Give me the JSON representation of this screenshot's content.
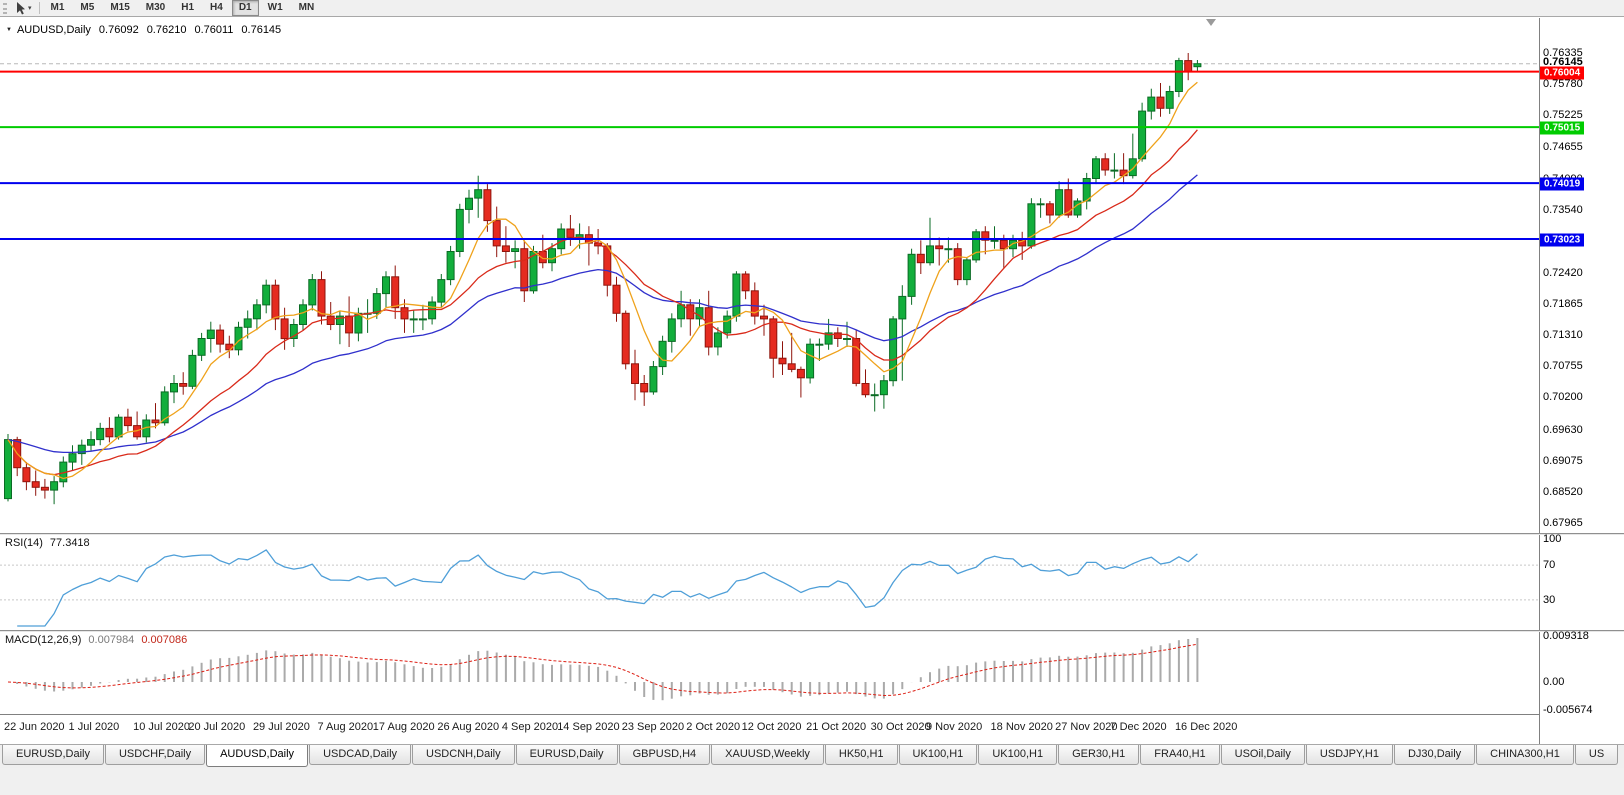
{
  "toolbar": {
    "timeframes": [
      "M1",
      "M5",
      "M15",
      "M30",
      "H1",
      "H4",
      "D1",
      "W1",
      "MN"
    ],
    "active_timeframe": "D1"
  },
  "chart": {
    "title": "AUDUSD,Daily",
    "open": "0.76092",
    "high": "0.76210",
    "low": "0.76011",
    "close": "0.76145"
  },
  "indicators": {
    "rsi": {
      "label": "RSI(14)",
      "value": "77.3418",
      "axis_labels": [
        "100",
        "70",
        "30"
      ]
    },
    "macd": {
      "label": "MACD(12,26,9)",
      "value_main": "0.007984",
      "value_signal": "0.007086",
      "axis_labels": [
        "0.009318",
        "0.00",
        "-0.005674"
      ]
    }
  },
  "tabs": {
    "active_index": 2,
    "items": [
      "EURUSD,Daily",
      "USDCHF,Daily",
      "AUDUSD,Daily",
      "USDCAD,Daily",
      "USDCNH,Daily",
      "EURUSD,Daily",
      "GBPUSD,H4",
      "XAUUSD,Weekly",
      "HK50,H1",
      "UK100,H1",
      "UK100,H1",
      "GER30,H1",
      "FRA40,H1",
      "USOil,Daily",
      "USDJPY,H1",
      "DJ30,Daily",
      "CHINA300,H1",
      "US"
    ]
  },
  "chart_data": {
    "type": "candlestick",
    "symbol": "AUDUSD",
    "period": "Daily",
    "current_price": 0.76145,
    "y_axis": {
      "top_value": 0.76335,
      "bottom_value": 0.67965,
      "labels": [
        "0.76335",
        "0.75780",
        "0.75225",
        "0.74655",
        "0.74090",
        "0.73540",
        "0.72970",
        "0.72420",
        "0.71865",
        "0.71310",
        "0.70755",
        "0.70200",
        "0.69630",
        "0.69075",
        "0.68520",
        "0.67965"
      ]
    },
    "colors": {
      "bull_fill": "#12ae3c",
      "bull_stroke": "#0a6b24",
      "bear_fill": "#e52b20",
      "bear_stroke": "#8f140c",
      "ma_fast": "#efa21b",
      "ma_mid": "#d92a1a",
      "ma_slow": "#3030cc",
      "rsi": "#4f9fd8",
      "rsi_level": "#c8c8c8",
      "macd_hist": "#aaaaaa",
      "macd_signal": "#dd2015",
      "bid_line": "#b8b8b8"
    },
    "hlines": [
      {
        "value": 0.76004,
        "label": "0.76004",
        "color": "#ff0000"
      },
      {
        "value": 0.75015,
        "label": "0.75015",
        "color": "#00cc00"
      },
      {
        "value": 0.74019,
        "label": "0.74019",
        "color": "#0000ee"
      },
      {
        "value": 0.73023,
        "label": "0.73023",
        "color": "#0000ee"
      }
    ],
    "moving_averages": [
      {
        "type": "ema",
        "period": 30,
        "color_key": "ma_slow"
      },
      {
        "type": "sma",
        "period": 14,
        "color_key": "ma_mid"
      },
      {
        "type": "sma",
        "period": 6,
        "color_key": "ma_fast"
      }
    ],
    "rsi": {
      "period": 14,
      "levels": [
        70,
        30
      ],
      "scale": [
        0,
        100
      ]
    },
    "macd": {
      "fast": 12,
      "slow": 26,
      "signal": 9,
      "y_max": 0.009318,
      "y_min": -0.005674
    },
    "x_ticks": [
      [
        0,
        "22 Jun 2020"
      ],
      [
        7,
        "1 Jul 2020"
      ],
      [
        14,
        "10 Jul 2020"
      ],
      [
        20,
        "20 Jul 2020"
      ],
      [
        27,
        "29 Jul 2020"
      ],
      [
        34,
        "7 Aug 2020"
      ],
      [
        40,
        "17 Aug 2020"
      ],
      [
        47,
        "26 Aug 2020"
      ],
      [
        54,
        "4 Sep 2020"
      ],
      [
        60,
        "14 Sep 2020"
      ],
      [
        67,
        "23 Sep 2020"
      ],
      [
        74,
        "2 Oct 2020"
      ],
      [
        80,
        "12 Oct 2020"
      ],
      [
        87,
        "21 Oct 2020"
      ],
      [
        94,
        "30 Oct 2020"
      ],
      [
        100,
        "9 Nov 2020"
      ],
      [
        107,
        "18 Nov 2020"
      ],
      [
        114,
        "27 Nov 2020"
      ],
      [
        120,
        "7 Dec 2020"
      ],
      [
        127,
        "16 Dec 2020"
      ]
    ],
    "candles": [
      [
        0.684,
        0.6955,
        0.6835,
        0.6945
      ],
      [
        0.6945,
        0.695,
        0.688,
        0.6895
      ],
      [
        0.6895,
        0.6905,
        0.6855,
        0.687
      ],
      [
        0.687,
        0.689,
        0.6845,
        0.686
      ],
      [
        0.686,
        0.6875,
        0.684,
        0.6855
      ],
      [
        0.6855,
        0.688,
        0.683,
        0.687
      ],
      [
        0.687,
        0.6915,
        0.686,
        0.6905
      ],
      [
        0.6905,
        0.6935,
        0.689,
        0.692
      ],
      [
        0.692,
        0.6945,
        0.69,
        0.6935
      ],
      [
        0.6935,
        0.696,
        0.6925,
        0.6945
      ],
      [
        0.6945,
        0.6975,
        0.6935,
        0.6965
      ],
      [
        0.6965,
        0.6985,
        0.694,
        0.695
      ],
      [
        0.695,
        0.699,
        0.6945,
        0.6985
      ],
      [
        0.6985,
        0.7,
        0.696,
        0.697
      ],
      [
        0.697,
        0.6995,
        0.6945,
        0.695
      ],
      [
        0.695,
        0.699,
        0.694,
        0.698
      ],
      [
        0.698,
        0.701,
        0.6965,
        0.6975
      ],
      [
        0.6975,
        0.704,
        0.697,
        0.703
      ],
      [
        0.703,
        0.706,
        0.701,
        0.7045
      ],
      [
        0.7045,
        0.7065,
        0.7025,
        0.704
      ],
      [
        0.704,
        0.7105,
        0.7035,
        0.7095
      ],
      [
        0.7095,
        0.7135,
        0.7085,
        0.7125
      ],
      [
        0.7125,
        0.7155,
        0.71,
        0.714
      ],
      [
        0.714,
        0.715,
        0.71,
        0.7115
      ],
      [
        0.7115,
        0.713,
        0.709,
        0.7105
      ],
      [
        0.7105,
        0.7155,
        0.7095,
        0.7145
      ],
      [
        0.7145,
        0.7175,
        0.7125,
        0.716
      ],
      [
        0.716,
        0.7195,
        0.714,
        0.7185
      ],
      [
        0.7185,
        0.723,
        0.717,
        0.722
      ],
      [
        0.722,
        0.723,
        0.714,
        0.716
      ],
      [
        0.716,
        0.718,
        0.7105,
        0.7125
      ],
      [
        0.7125,
        0.716,
        0.711,
        0.715
      ],
      [
        0.715,
        0.7195,
        0.714,
        0.7185
      ],
      [
        0.7185,
        0.724,
        0.7175,
        0.723
      ],
      [
        0.723,
        0.7245,
        0.715,
        0.7165
      ],
      [
        0.7165,
        0.719,
        0.714,
        0.715
      ],
      [
        0.715,
        0.7175,
        0.7115,
        0.7165
      ],
      [
        0.7165,
        0.72,
        0.711,
        0.7135
      ],
      [
        0.7135,
        0.718,
        0.712,
        0.717
      ],
      [
        0.717,
        0.7195,
        0.7135,
        0.717
      ],
      [
        0.717,
        0.7215,
        0.716,
        0.7205
      ],
      [
        0.7205,
        0.7245,
        0.718,
        0.7235
      ],
      [
        0.7235,
        0.7255,
        0.716,
        0.718
      ],
      [
        0.718,
        0.7195,
        0.7135,
        0.716
      ],
      [
        0.716,
        0.7175,
        0.7135,
        0.716
      ],
      [
        0.716,
        0.7185,
        0.714,
        0.716
      ],
      [
        0.716,
        0.72,
        0.715,
        0.719
      ],
      [
        0.719,
        0.724,
        0.718,
        0.723
      ],
      [
        0.723,
        0.729,
        0.722,
        0.728
      ],
      [
        0.728,
        0.7365,
        0.727,
        0.7355
      ],
      [
        0.7355,
        0.739,
        0.733,
        0.7375
      ],
      [
        0.7375,
        0.7415,
        0.734,
        0.739
      ],
      [
        0.739,
        0.74,
        0.7315,
        0.7335
      ],
      [
        0.7335,
        0.736,
        0.727,
        0.729
      ],
      [
        0.729,
        0.7325,
        0.726,
        0.728
      ],
      [
        0.728,
        0.73,
        0.725,
        0.7285
      ],
      [
        0.7285,
        0.73,
        0.719,
        0.721
      ],
      [
        0.721,
        0.729,
        0.7205,
        0.728
      ],
      [
        0.728,
        0.731,
        0.725,
        0.726
      ],
      [
        0.726,
        0.7295,
        0.7245,
        0.7285
      ],
      [
        0.7285,
        0.733,
        0.7275,
        0.732
      ],
      [
        0.732,
        0.7345,
        0.729,
        0.7305
      ],
      [
        0.7305,
        0.733,
        0.7285,
        0.731
      ],
      [
        0.731,
        0.7325,
        0.7255,
        0.7295
      ],
      [
        0.7295,
        0.732,
        0.7275,
        0.729
      ],
      [
        0.729,
        0.7295,
        0.72,
        0.722
      ],
      [
        0.722,
        0.7235,
        0.7155,
        0.717
      ],
      [
        0.717,
        0.7175,
        0.707,
        0.708
      ],
      [
        0.708,
        0.7105,
        0.7015,
        0.7045
      ],
      [
        0.7045,
        0.706,
        0.7005,
        0.703
      ],
      [
        0.703,
        0.7085,
        0.7025,
        0.7075
      ],
      [
        0.7075,
        0.713,
        0.706,
        0.712
      ],
      [
        0.712,
        0.717,
        0.71,
        0.716
      ],
      [
        0.716,
        0.721,
        0.7145,
        0.7185
      ],
      [
        0.7185,
        0.7195,
        0.713,
        0.716
      ],
      [
        0.716,
        0.7195,
        0.7145,
        0.718
      ],
      [
        0.718,
        0.721,
        0.7095,
        0.711
      ],
      [
        0.711,
        0.7145,
        0.7095,
        0.7135
      ],
      [
        0.7135,
        0.7175,
        0.7125,
        0.7165
      ],
      [
        0.7165,
        0.7245,
        0.7155,
        0.724
      ],
      [
        0.724,
        0.7245,
        0.7195,
        0.721
      ],
      [
        0.721,
        0.7225,
        0.715,
        0.7165
      ],
      [
        0.7165,
        0.7185,
        0.713,
        0.716
      ],
      [
        0.716,
        0.7165,
        0.7055,
        0.709
      ],
      [
        0.709,
        0.712,
        0.706,
        0.708
      ],
      [
        0.708,
        0.7135,
        0.7065,
        0.707
      ],
      [
        0.707,
        0.7075,
        0.702,
        0.7055
      ],
      [
        0.7055,
        0.7125,
        0.7045,
        0.7115
      ],
      [
        0.7115,
        0.7125,
        0.7085,
        0.7115
      ],
      [
        0.7115,
        0.716,
        0.7105,
        0.7135
      ],
      [
        0.7135,
        0.7145,
        0.711,
        0.7125
      ],
      [
        0.7125,
        0.7155,
        0.711,
        0.7125
      ],
      [
        0.7125,
        0.714,
        0.704,
        0.7045
      ],
      [
        0.7045,
        0.707,
        0.702,
        0.7025
      ],
      [
        0.7025,
        0.7045,
        0.6995,
        0.7025
      ],
      [
        0.7025,
        0.706,
        0.7,
        0.705
      ],
      [
        0.705,
        0.7165,
        0.704,
        0.716
      ],
      [
        0.716,
        0.722,
        0.705,
        0.72
      ],
      [
        0.72,
        0.7285,
        0.7185,
        0.7275
      ],
      [
        0.7275,
        0.73,
        0.724,
        0.726
      ],
      [
        0.726,
        0.734,
        0.7255,
        0.729
      ],
      [
        0.729,
        0.7305,
        0.7255,
        0.7285
      ],
      [
        0.7285,
        0.7305,
        0.726,
        0.7285
      ],
      [
        0.7285,
        0.7295,
        0.722,
        0.723
      ],
      [
        0.723,
        0.727,
        0.722,
        0.7265
      ],
      [
        0.7265,
        0.732,
        0.726,
        0.7315
      ],
      [
        0.7315,
        0.7325,
        0.7275,
        0.73
      ],
      [
        0.73,
        0.7325,
        0.7285,
        0.73
      ],
      [
        0.73,
        0.731,
        0.725,
        0.7285
      ],
      [
        0.7285,
        0.731,
        0.727,
        0.73
      ],
      [
        0.73,
        0.7315,
        0.7265,
        0.729
      ],
      [
        0.729,
        0.7375,
        0.7285,
        0.7365
      ],
      [
        0.7365,
        0.7375,
        0.734,
        0.7365
      ],
      [
        0.7365,
        0.737,
        0.733,
        0.7345
      ],
      [
        0.7345,
        0.7405,
        0.734,
        0.739
      ],
      [
        0.739,
        0.741,
        0.734,
        0.7345
      ],
      [
        0.7345,
        0.7375,
        0.734,
        0.737
      ],
      [
        0.737,
        0.742,
        0.7355,
        0.741
      ],
      [
        0.741,
        0.745,
        0.74,
        0.7445
      ],
      [
        0.7445,
        0.7455,
        0.7415,
        0.7425
      ],
      [
        0.7425,
        0.7455,
        0.741,
        0.7425
      ],
      [
        0.7425,
        0.7455,
        0.74,
        0.7415
      ],
      [
        0.7415,
        0.749,
        0.741,
        0.7445
      ],
      [
        0.7445,
        0.7545,
        0.744,
        0.753
      ],
      [
        0.753,
        0.757,
        0.7515,
        0.7555
      ],
      [
        0.7555,
        0.758,
        0.752,
        0.7535
      ],
      [
        0.7535,
        0.7575,
        0.7525,
        0.7565
      ],
      [
        0.7565,
        0.7625,
        0.7555,
        0.762
      ],
      [
        0.762,
        0.76335,
        0.7585,
        0.76
      ],
      [
        0.76092,
        0.7621,
        0.76011,
        0.76145
      ]
    ]
  }
}
